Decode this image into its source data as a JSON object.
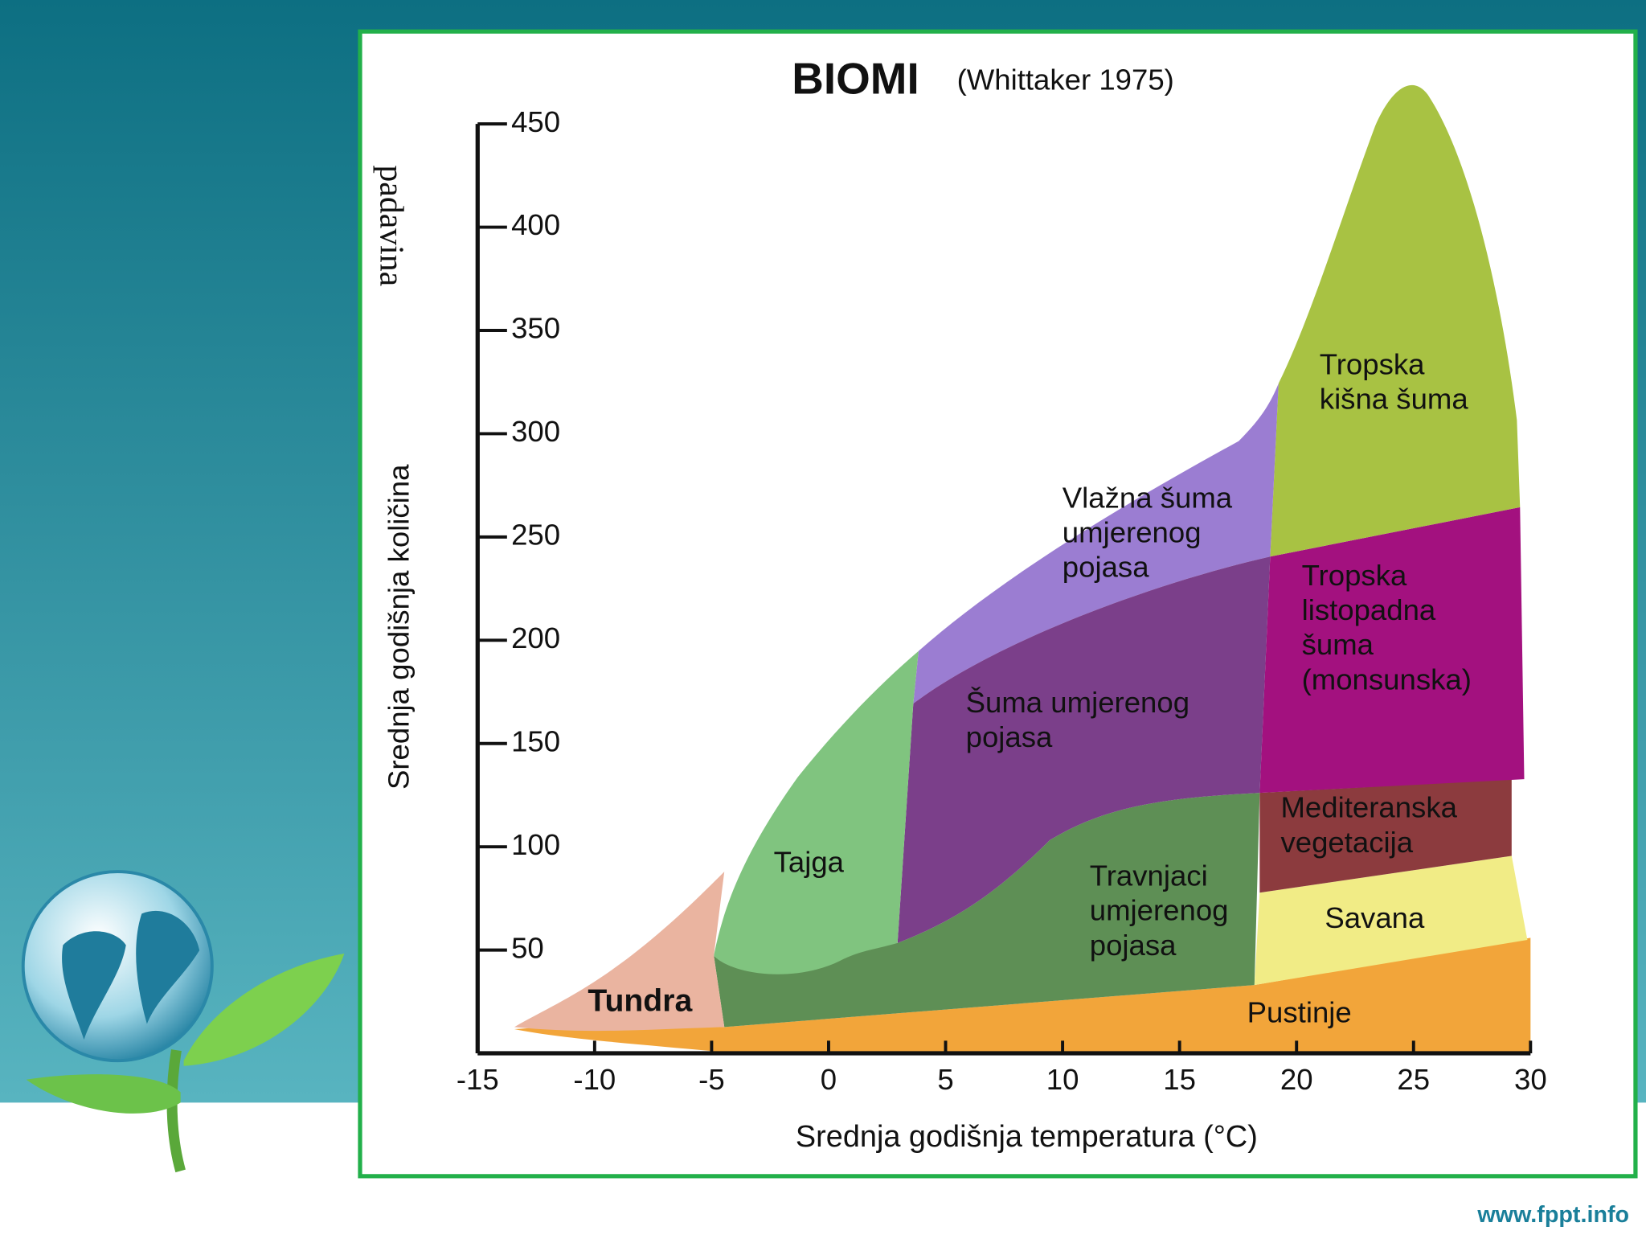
{
  "chart_data": {
    "type": "biome",
    "title": "BIOMI",
    "subtitle": "(Whittaker 1975)",
    "x_label": "Srednja godišnja temperatura (°C)",
    "y_label": [
      "Srednja godišnja količina",
      "padavina"
    ],
    "xlim": [
      -15,
      30
    ],
    "xticks": [
      -15,
      -10,
      -5,
      0,
      5,
      10,
      15,
      20,
      25,
      30
    ],
    "ylim": [
      0,
      450
    ],
    "yticks": [
      50,
      100,
      150,
      200,
      250,
      300,
      350,
      400,
      450
    ],
    "regions": [
      {
        "lines": [
          "Pustinje"
        ],
        "color": "#f2a53a"
      },
      {
        "lines": [
          "Travnjaci",
          "umjerenog",
          "pojasa"
        ],
        "color": "#5e8f55"
      },
      {
        "lines": [
          "Savana"
        ],
        "color": "#f1ec86"
      },
      {
        "lines": [
          "Mediteranska",
          "vegetacija"
        ],
        "color": "#8c3b3e"
      },
      {
        "lines": [
          "Tropska",
          "listopadna",
          "šuma",
          "(monsunska)"
        ],
        "color": "#a3117f"
      },
      {
        "lines": [
          "Tropska",
          "kišna šuma"
        ],
        "color": "#a8c243"
      },
      {
        "lines": [
          "Vlažna šuma",
          "umjerenog",
          "pojasa"
        ],
        "color": "#9b7dd2"
      },
      {
        "lines": [
          "Šuma umjerenog",
          "pojasa"
        ],
        "color": "#7b3f8a"
      },
      {
        "lines": [
          "Tajga"
        ],
        "color": "#80c47f"
      },
      {
        "lines": [
          "Tundra"
        ],
        "color": "#eab4a0"
      }
    ]
  },
  "footer": "www.fppt.info"
}
